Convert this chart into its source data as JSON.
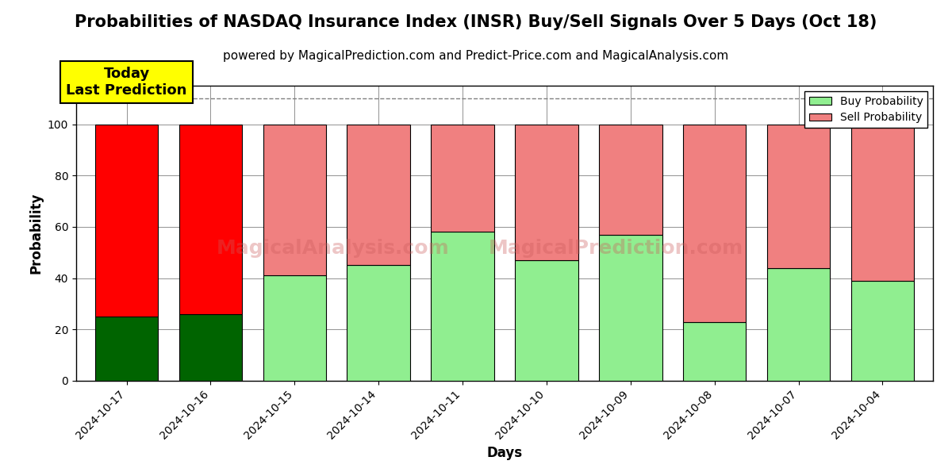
{
  "title": "Probabilities of NASDAQ Insurance Index (INSR) Buy/Sell Signals Over 5 Days (Oct 18)",
  "subtitle": "powered by MagicalPrediction.com and Predict-Price.com and MagicalAnalysis.com",
  "xlabel": "Days",
  "ylabel": "Probability",
  "categories": [
    "2024-10-17",
    "2024-10-16",
    "2024-10-15",
    "2024-10-14",
    "2024-10-11",
    "2024-10-10",
    "2024-10-09",
    "2024-10-08",
    "2024-10-07",
    "2024-10-04"
  ],
  "buy_values": [
    25,
    26,
    41,
    45,
    58,
    47,
    57,
    23,
    44,
    39
  ],
  "sell_values": [
    75,
    74,
    59,
    55,
    42,
    53,
    43,
    77,
    56,
    61
  ],
  "buy_colors_special": [
    "#006400",
    "#006400"
  ],
  "sell_colors_special": [
    "#ff0000",
    "#ff0000"
  ],
  "buy_color_normal": "#90EE90",
  "sell_color_normal": "#f08080",
  "today_box_color": "#ffff00",
  "dashed_line_y": 110,
  "ylim": [
    0,
    115
  ],
  "yticks": [
    0,
    20,
    40,
    60,
    80,
    100
  ],
  "watermark1": "MagicalAnalysis.com",
  "watermark2": "MagicalPrediction.com",
  "legend_buy": "Buy Probability",
  "legend_sell": "Sell Probability",
  "title_fontsize": 15,
  "subtitle_fontsize": 11,
  "axis_label_fontsize": 12
}
